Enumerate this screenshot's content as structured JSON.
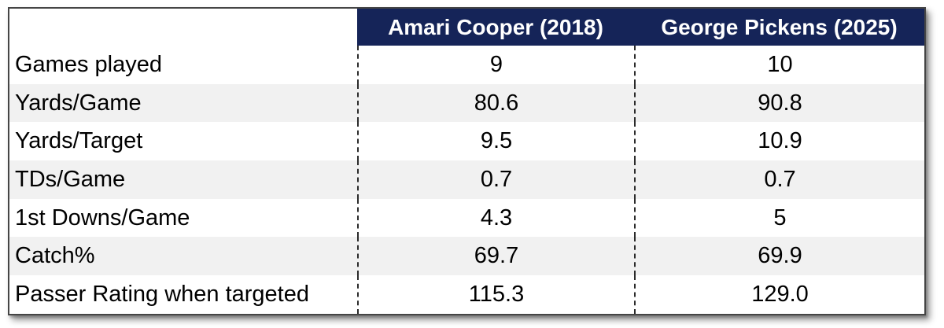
{
  "table": {
    "columns": [
      "",
      "Amari Cooper (2018)",
      "George Pickens (2025)"
    ],
    "rows": [
      {
        "label": "Games played",
        "values": [
          "9",
          "10"
        ]
      },
      {
        "label": "Yards/Game",
        "values": [
          "80.6",
          "90.8"
        ]
      },
      {
        "label": "Yards/Target",
        "values": [
          "9.5",
          "10.9"
        ]
      },
      {
        "label": "TDs/Game",
        "values": [
          "0.7",
          "0.7"
        ]
      },
      {
        "label": "1st Downs/Game",
        "values": [
          "4.3",
          "5"
        ]
      },
      {
        "label": "Catch%",
        "values": [
          "69.7",
          "69.9"
        ]
      },
      {
        "label": "Passer Rating when targeted",
        "values": [
          "115.3",
          "129.0"
        ]
      }
    ],
    "colors": {
      "header_bg": "#152458",
      "header_text": "#FFFFFF",
      "stripe_bg": "#F1F1F1",
      "border": "#454545",
      "divider_dash": "#2B2B2B"
    }
  },
  "chart_data": {
    "type": "table",
    "title": "",
    "columns": [
      "Amari Cooper (2018)",
      "George Pickens (2025)"
    ],
    "row_labels": [
      "Games played",
      "Yards/Game",
      "Yards/Target",
      "TDs/Game",
      "1st Downs/Game",
      "Catch%",
      "Passer Rating when targeted"
    ],
    "series": [
      {
        "name": "Amari Cooper (2018)",
        "values": [
          9,
          80.6,
          9.5,
          0.7,
          4.3,
          69.7,
          115.3
        ]
      },
      {
        "name": "George Pickens (2025)",
        "values": [
          10,
          90.8,
          10.9,
          0.7,
          5,
          69.9,
          129.0
        ]
      }
    ],
    "layout": {
      "striped_rows": true,
      "dashed_column_dividers": true,
      "header_position": "top"
    }
  }
}
